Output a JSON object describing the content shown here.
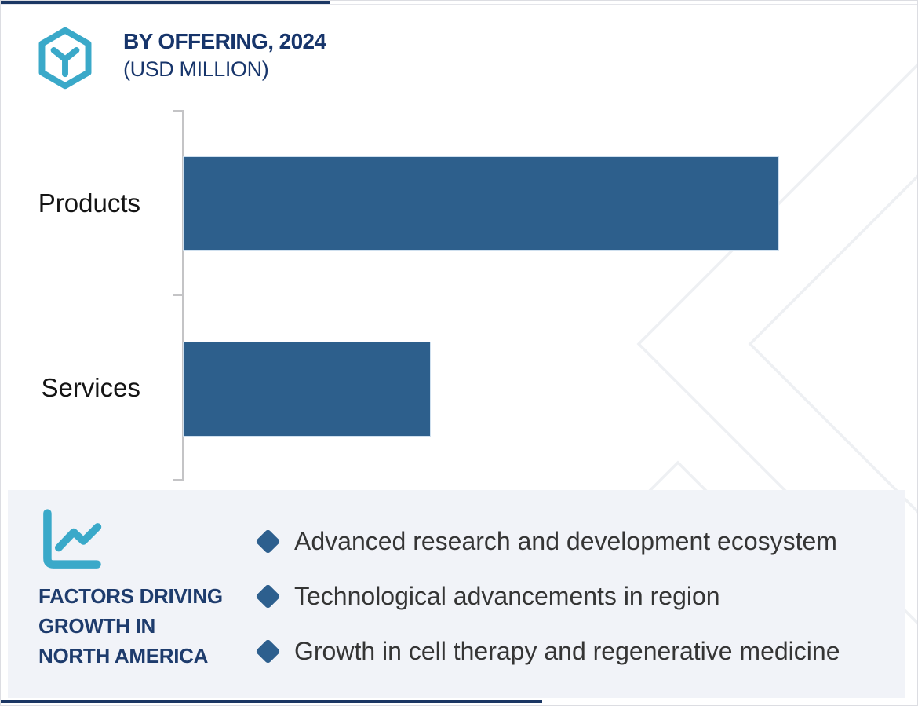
{
  "header": {
    "title": "BY OFFERING, 2024",
    "subtitle": "(USD MILLION)",
    "logo_icon": "hexagon-y-logo"
  },
  "chart_data": {
    "type": "bar",
    "orientation": "horizontal",
    "title": "BY OFFERING, 2024",
    "unit": "USD MILLION",
    "categories": [
      "Products",
      "Services"
    ],
    "values_relative_pct": [
      100,
      41.4
    ],
    "value_labels_shown": false,
    "axis_numeric_labels_shown": false,
    "grid": false,
    "legend": "none",
    "bar_color": "#2d5f8c"
  },
  "factors_panel": {
    "icon": "line-chart-icon",
    "heading_lines": [
      "FACTORS DRIVING",
      "GROWTH IN",
      "NORTH AMERICA"
    ],
    "bullet_shape": "diamond",
    "items": [
      "Advanced research and development ecosystem",
      "Technological advancements in region",
      "Growth in cell therapy and regenerative medicine"
    ]
  },
  "colors": {
    "accent_navy": "#1b3764",
    "teal": "#3aa9c9",
    "bar_blue": "#2d5f8c",
    "panel_bg": "#f1f3f8",
    "axis_gray": "#c4c4c6",
    "watermark_gray": "#eef0f3",
    "heading_navy": "#17356b",
    "body_text": "#353535"
  }
}
